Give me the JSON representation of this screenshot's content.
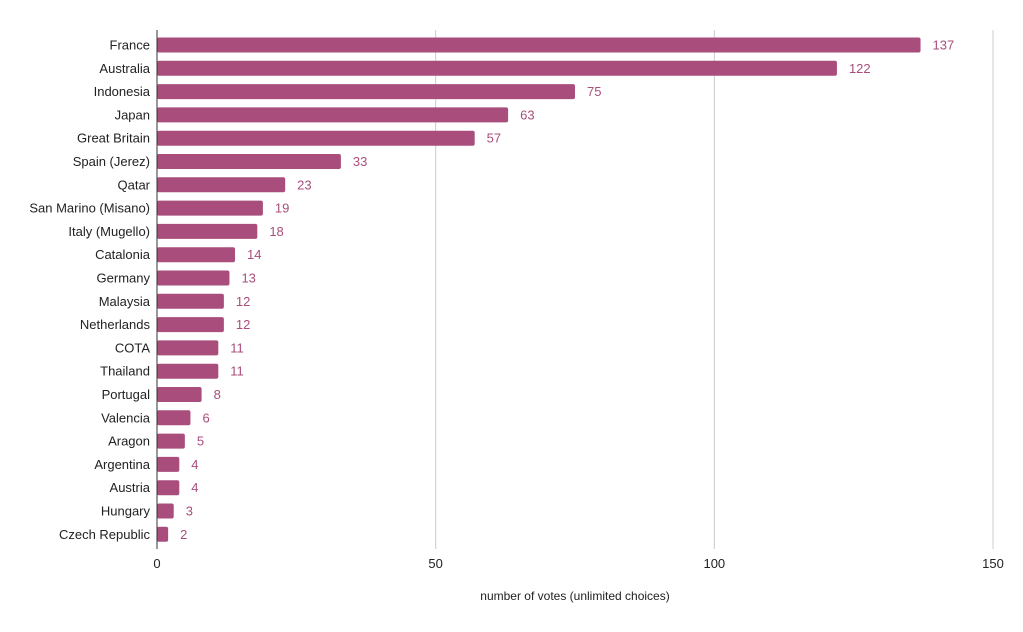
{
  "chart_data": {
    "type": "bar",
    "orientation": "horizontal",
    "title": "",
    "xlabel": "number of votes (unlimited choices)",
    "ylabel": "",
    "categories": [
      "France",
      "Australia",
      "Indonesia",
      "Japan",
      "Great Britain",
      "Spain (Jerez)",
      "Qatar",
      "San Marino (Misano)",
      "Italy (Mugello)",
      "Catalonia",
      "Germany",
      "Malaysia",
      "Netherlands",
      "COTA",
      "Thailand",
      "Portugal",
      "Valencia",
      "Aragon",
      "Argentina",
      "Austria",
      "Hungary",
      "Czech Republic"
    ],
    "values": [
      137,
      122,
      75,
      63,
      57,
      33,
      23,
      19,
      18,
      14,
      13,
      12,
      12,
      11,
      11,
      8,
      6,
      5,
      4,
      4,
      3,
      2
    ],
    "xlim": [
      0,
      150
    ],
    "xticks": [
      0,
      50,
      100,
      150
    ],
    "grid": true,
    "legend": "none",
    "colors": {
      "bar": "#A94E7C",
      "value_label": "#A94E7C",
      "grid": "#cccccc",
      "axis": "#333333",
      "text": "#222222"
    }
  }
}
